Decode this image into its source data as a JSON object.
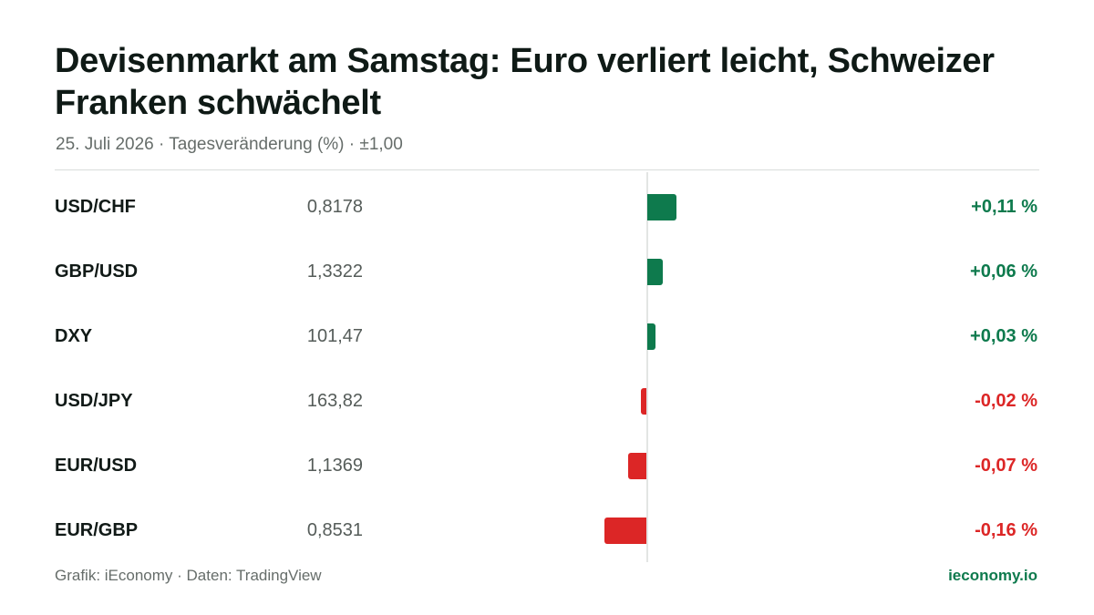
{
  "title": "Devisenmarkt am Samstag: Euro verliert leicht, Schweizer Franken schwächelt",
  "subtitle": "25. Juli 2026 · Tagesveränderung (%) · ±1,00",
  "footer": {
    "source": "Grafik: iEconomy · Daten: TradingView",
    "brand": "ieconomy.io"
  },
  "colors": {
    "positive": "#0e7a4d",
    "negative": "#dc2626",
    "zero_line": "#e3e5e4"
  },
  "chart_data": {
    "type": "bar",
    "orientation": "horizontal",
    "categories": [
      "USD/CHF",
      "GBP/USD",
      "DXY",
      "USD/JPY",
      "EUR/USD",
      "EUR/GBP"
    ],
    "prices": [
      "0,8178",
      "1,3322",
      "101,47",
      "163,82",
      "1,1369",
      "0,8531"
    ],
    "values": [
      0.11,
      0.06,
      0.03,
      -0.02,
      -0.07,
      -0.16
    ],
    "value_labels": [
      "+0,11 %",
      "+0,06 %",
      "+0,03 %",
      "-0,02 %",
      "-0,07 %",
      "-0,16 %"
    ],
    "xlim": [
      -1.0,
      1.0
    ],
    "title": "Devisenmarkt am Samstag: Euro verliert leicht, Schweizer Franken schwächelt",
    "xlabel": "",
    "ylabel": "",
    "grid": false,
    "legend": "none"
  }
}
